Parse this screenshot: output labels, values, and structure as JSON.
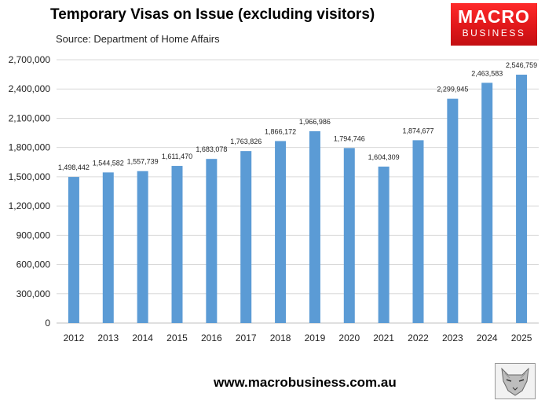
{
  "header": {
    "title": "Temporary Visas on Issue (excluding visitors)",
    "source": "Source: Department of Home Affairs"
  },
  "logo": {
    "line1": "MACRO",
    "line2": "BUSINESS"
  },
  "footer": {
    "url": "www.macrobusiness.com.au"
  },
  "colors": {
    "bar": "#5b9bd5",
    "grid": "#d9d9d9",
    "logo_red": "#e0171a"
  },
  "chart_data": {
    "type": "bar",
    "title": "Temporary Visas on Issue (excluding visitors)",
    "xlabel": "",
    "ylabel": "",
    "ylim": [
      0,
      2700000
    ],
    "ytick_labels": [
      "0",
      "300,000",
      "600,000",
      "900,000",
      "1,200,000",
      "1,500,000",
      "1,800,000",
      "2,100,000",
      "2,400,000",
      "2,700,000"
    ],
    "grid": true,
    "categories": [
      "2012",
      "2013",
      "2014",
      "2015",
      "2016",
      "2017",
      "2018",
      "2019",
      "2020",
      "2021",
      "2022",
      "2023",
      "2024",
      "2025"
    ],
    "values": [
      1498442,
      1544582,
      1557739,
      1611470,
      1683078,
      1763826,
      1866172,
      1966986,
      1794746,
      1604309,
      1874677,
      2299945,
      2463583,
      2546759
    ],
    "data_labels": [
      "1,498,442",
      "1,544,582",
      "1,557,739",
      "1,611,470",
      "1,683,078",
      "1,763,826",
      "1,866,172",
      "1,966,986",
      "1,794,746",
      "1,604,309",
      "1,874,677",
      "2,299,945",
      "2,463,583",
      "2,546,759"
    ]
  }
}
